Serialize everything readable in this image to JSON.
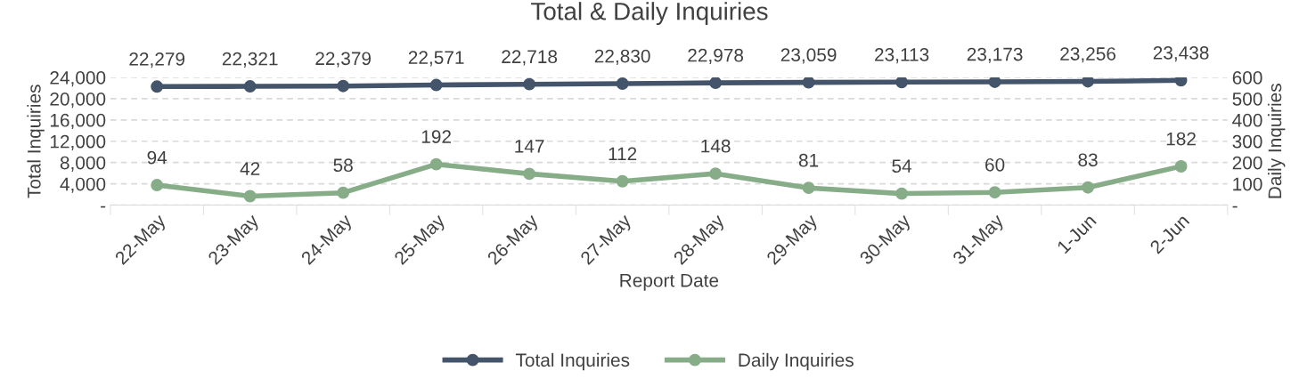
{
  "chart_data": {
    "type": "line",
    "title": "Total & Daily Inquiries",
    "xlabel": "Report Date",
    "ylabel": "Total Inquiries",
    "y2label": "Daily Inquiries",
    "categories": [
      "22-May",
      "23-May",
      "24-May",
      "25-May",
      "26-May",
      "27-May",
      "28-May",
      "29-May",
      "30-May",
      "31-May",
      "1-Jun",
      "2-Jun"
    ],
    "series": [
      {
        "name": "Total Inquiries",
        "color": "#44546a",
        "values": [
          22279,
          22321,
          22379,
          22571,
          22718,
          22830,
          22978,
          23059,
          23113,
          23173,
          23256,
          23438
        ],
        "value_labels": [
          "22,279",
          "22,321",
          "22,379",
          "22,571",
          "22,718",
          "22,830",
          "22,978",
          "23,059",
          "23,113",
          "23,173",
          "23,256",
          "23,438"
        ]
      },
      {
        "name": "Daily Inquiries",
        "color": "#87ad88",
        "axis": "y2",
        "values": [
          94,
          42,
          58,
          192,
          147,
          112,
          148,
          81,
          54,
          60,
          83,
          182
        ],
        "value_labels": [
          "94",
          "42",
          "58",
          "192",
          "147",
          "112",
          "148",
          "81",
          "54",
          "60",
          "83",
          "182"
        ]
      }
    ],
    "ylim": [
      0,
      24000
    ],
    "yticks": [
      {
        "value": 0,
        "label": "-"
      },
      {
        "value": 4000,
        "label": "4,000"
      },
      {
        "value": 8000,
        "label": "8,000"
      },
      {
        "value": 12000,
        "label": "12,000"
      },
      {
        "value": 16000,
        "label": "16,000"
      },
      {
        "value": 20000,
        "label": "20,000"
      },
      {
        "value": 24000,
        "label": "24,000"
      }
    ],
    "y2lim": [
      0,
      600
    ],
    "y2ticks": [
      {
        "value": 0,
        "label": "-"
      },
      100,
      200,
      300,
      400,
      500,
      600
    ],
    "grid": "y",
    "legend": "bottom",
    "marker": "circle",
    "line_style": "solid"
  }
}
